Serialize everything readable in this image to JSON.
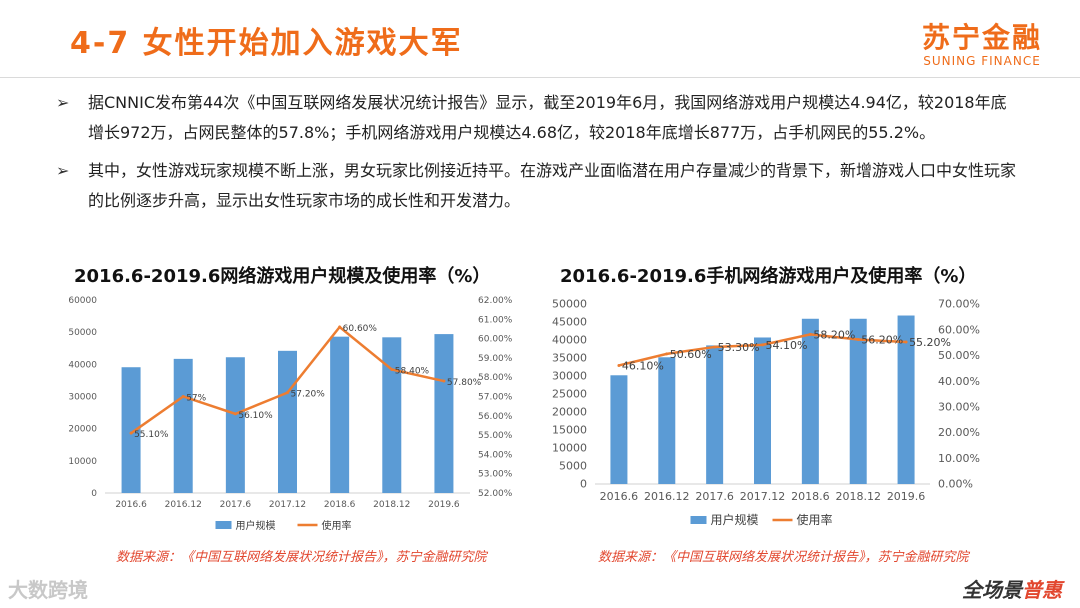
{
  "header": {
    "title": "4-7 女性开始加入游戏大军",
    "logo_cn": "苏宁金融",
    "logo_en": "SUNING FINANCE"
  },
  "bullets": [
    "据CNNIC发布第44次《中国互联网络发展状况统计报告》显示，截至2019年6月，我国网络游戏用户规模达4.94亿，较2018年底增长972万，占网民整体的57.8%；手机网络游戏用户规模达4.68亿，较2018年底增长877万，占手机网民的55.2%。",
    "其中，女性游戏玩家规模不断上涨，男女玩家比例接近持平。在游戏产业面临潜在用户存量减少的背景下，新增游戏人口中女性玩家的比例逐步升高，显示出女性玩家市场的成长性和开发潜力。"
  ],
  "sources": {
    "left": "数据来源：《中国互联网络发展状况统计报告》，苏宁金融研究院",
    "right": "数据来源：《中国互联网络发展状况统计报告》，苏宁金融研究院"
  },
  "watermark": {
    "left": "大数跨境",
    "right_main": "全场景",
    "right_accent": "普惠"
  },
  "colors": {
    "accent": "#ef6c1a",
    "bar": "#5b9bd5",
    "line": "#ed7d31"
  },
  "chart_data": [
    {
      "type": "bar",
      "title": "2016.6-2019.6网络游戏用户规模及使用率（%）",
      "categories": [
        "2016.6",
        "2016.12",
        "2017.6",
        "2017.12",
        "2018.6",
        "2018.12",
        "2019.6"
      ],
      "series": [
        {
          "name": "用户规模",
          "type": "bar",
          "axis": "left",
          "values": [
            39100,
            41700,
            42200,
            44200,
            48600,
            48400,
            49400
          ]
        },
        {
          "name": "使用率",
          "type": "line",
          "axis": "right",
          "values": [
            55.1,
            57.0,
            56.1,
            57.2,
            60.6,
            58.4,
            57.8
          ],
          "labels": [
            "55.10%",
            "57%",
            "56.10%",
            "57.20%",
            "60.60%",
            "58.40%",
            "57.80%"
          ]
        }
      ],
      "ylim_left": [
        0,
        60000
      ],
      "yticks_left": [
        "0",
        "10000",
        "20000",
        "30000",
        "40000",
        "50000",
        "60000"
      ],
      "ylim_right": [
        52,
        62
      ],
      "yticks_right": [
        "52.00%",
        "53.00%",
        "54.00%",
        "55.00%",
        "56.00%",
        "57.00%",
        "58.00%",
        "59.00%",
        "60.00%",
        "61.00%",
        "62.00%"
      ],
      "legend": "bottom",
      "grid": false
    },
    {
      "type": "bar",
      "title": "2016.6-2019.6手机网络游戏用户及使用率（%）",
      "categories": [
        "2016.6",
        "2016.12",
        "2017.6",
        "2017.12",
        "2018.6",
        "2018.12",
        "2019.6"
      ],
      "series": [
        {
          "name": "用户规模",
          "type": "bar",
          "axis": "left",
          "values": [
            30200,
            35200,
            38500,
            40700,
            45900,
            45900,
            46800
          ]
        },
        {
          "name": "使用率",
          "type": "line",
          "axis": "right",
          "values": [
            46.1,
            50.6,
            53.3,
            54.1,
            58.2,
            56.2,
            55.2
          ],
          "labels": [
            "46.10%",
            "50.60%",
            "53.30%",
            "54.10%",
            "58.20%",
            "56.20%",
            "55.20%"
          ]
        }
      ],
      "ylim_left": [
        0,
        50000
      ],
      "yticks_left": [
        "0",
        "5000",
        "10000",
        "15000",
        "20000",
        "25000",
        "30000",
        "35000",
        "40000",
        "45000",
        "50000"
      ],
      "ylim_right": [
        0,
        70
      ],
      "yticks_right": [
        "0.00%",
        "10.00%",
        "20.00%",
        "30.00%",
        "40.00%",
        "50.00%",
        "60.00%",
        "70.00%"
      ],
      "legend": "bottom",
      "grid": false
    }
  ]
}
